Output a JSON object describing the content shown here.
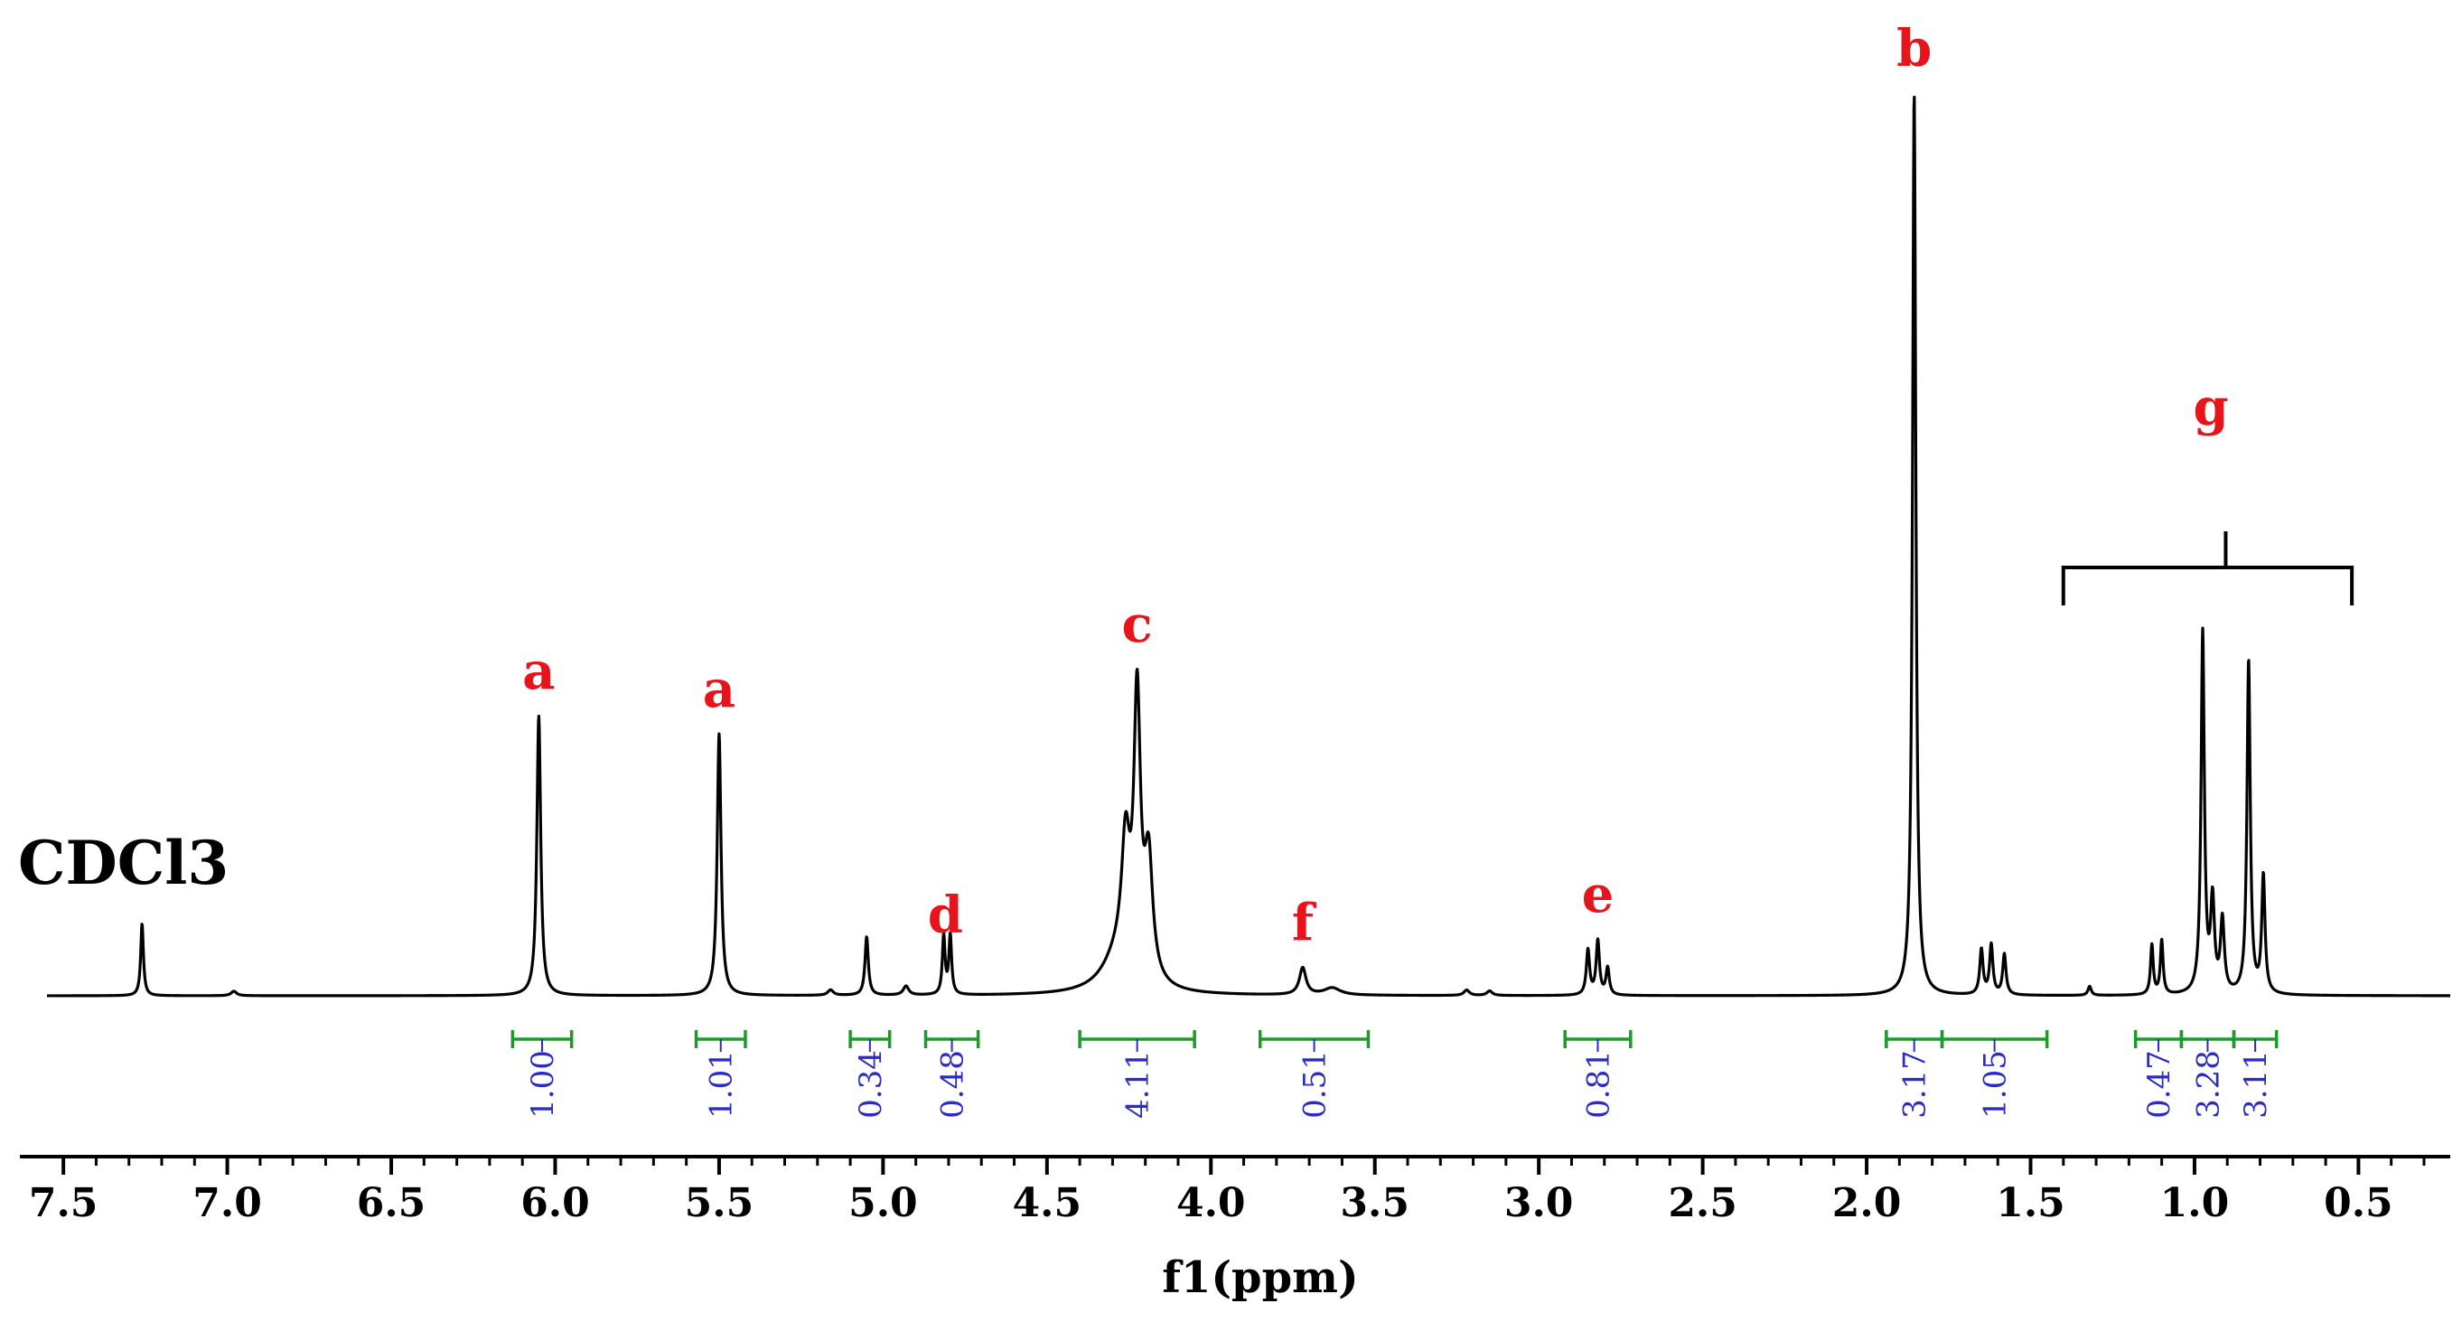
{
  "chart_data": {
    "type": "line",
    "title": "",
    "xlabel": "f1(ppm)",
    "ylabel": "",
    "x_axis": {
      "reversed": true,
      "xlim": [
        7.55,
        0.22
      ],
      "ticks": [
        7.5,
        7.0,
        6.5,
        6.0,
        5.5,
        5.0,
        4.5,
        4.0,
        3.5,
        3.0,
        2.5,
        2.0,
        1.5,
        1.0,
        0.5
      ],
      "tick_labels": [
        "7.5",
        "7.0",
        "6.5",
        "6.0",
        "5.5",
        "5.0",
        "4.5",
        "4.0",
        "3.5",
        "3.0",
        "2.5",
        "2.0",
        "1.5",
        "1.0",
        "0.5"
      ]
    },
    "y_range": [
      0,
      1
    ],
    "peaks": [
      {
        "ppm": 7.26,
        "intensity": 0.08,
        "width": 0.005
      },
      {
        "ppm": 6.98,
        "intensity": 0.005,
        "width": 0.01
      },
      {
        "ppm": 6.05,
        "intensity": 0.31,
        "width": 0.007
      },
      {
        "ppm": 5.5,
        "intensity": 0.29,
        "width": 0.007
      },
      {
        "ppm": 5.16,
        "intensity": 0.006,
        "width": 0.01
      },
      {
        "ppm": 5.05,
        "intensity": 0.065,
        "width": 0.006
      },
      {
        "ppm": 4.93,
        "intensity": 0.01,
        "width": 0.01
      },
      {
        "ppm": 4.815,
        "intensity": 0.065,
        "width": 0.005
      },
      {
        "ppm": 4.795,
        "intensity": 0.065,
        "width": 0.005
      },
      {
        "ppm": 4.26,
        "intensity": 0.13,
        "width": 0.015
      },
      {
        "ppm": 4.225,
        "intensity": 0.3,
        "width": 0.012
      },
      {
        "ppm": 4.19,
        "intensity": 0.13,
        "width": 0.015
      },
      {
        "ppm": 4.28,
        "intensity": 0.04,
        "width": 0.06
      },
      {
        "ppm": 3.72,
        "intensity": 0.03,
        "width": 0.012
      },
      {
        "ppm": 3.63,
        "intensity": 0.008,
        "width": 0.03
      },
      {
        "ppm": 3.22,
        "intensity": 0.006,
        "width": 0.01
      },
      {
        "ppm": 3.15,
        "intensity": 0.005,
        "width": 0.01
      },
      {
        "ppm": 2.85,
        "intensity": 0.05,
        "width": 0.006
      },
      {
        "ppm": 2.82,
        "intensity": 0.06,
        "width": 0.006
      },
      {
        "ppm": 2.79,
        "intensity": 0.03,
        "width": 0.006
      },
      {
        "ppm": 1.855,
        "intensity": 1.0,
        "width": 0.006
      },
      {
        "ppm": 1.65,
        "intensity": 0.05,
        "width": 0.006
      },
      {
        "ppm": 1.62,
        "intensity": 0.055,
        "width": 0.006
      },
      {
        "ppm": 1.58,
        "intensity": 0.045,
        "width": 0.006
      },
      {
        "ppm": 1.32,
        "intensity": 0.01,
        "width": 0.006
      },
      {
        "ppm": 1.13,
        "intensity": 0.055,
        "width": 0.005
      },
      {
        "ppm": 1.1,
        "intensity": 0.06,
        "width": 0.005
      },
      {
        "ppm": 0.975,
        "intensity": 0.4,
        "width": 0.006
      },
      {
        "ppm": 0.945,
        "intensity": 0.1,
        "width": 0.007
      },
      {
        "ppm": 0.915,
        "intensity": 0.08,
        "width": 0.007
      },
      {
        "ppm": 0.835,
        "intensity": 0.37,
        "width": 0.006
      },
      {
        "ppm": 0.79,
        "intensity": 0.13,
        "width": 0.006
      }
    ],
    "peak_labels": [
      {
        "text": "a",
        "ppm": 6.05
      },
      {
        "text": "a",
        "ppm": 5.5
      },
      {
        "text": "d",
        "ppm": 4.81
      },
      {
        "text": "c",
        "ppm": 4.225
      },
      {
        "text": "f",
        "ppm": 3.72
      },
      {
        "text": "e",
        "ppm": 2.82
      },
      {
        "text": "b",
        "ppm": 1.855
      },
      {
        "text": "g",
        "ppm": 0.95
      }
    ],
    "solvent_label": {
      "text": "CDCl3",
      "ppm": 7.26
    },
    "group_bracket": {
      "label": "g",
      "from_ppm": 1.4,
      "to_ppm": 0.52
    },
    "integrals": [
      {
        "value": "1.00",
        "from": 6.13,
        "to": 5.95
      },
      {
        "value": "1.01",
        "from": 5.57,
        "to": 5.42
      },
      {
        "value": "0.34",
        "from": 5.1,
        "to": 4.98
      },
      {
        "value": "0.48",
        "from": 4.87,
        "to": 4.71
      },
      {
        "value": "4.11",
        "from": 4.4,
        "to": 4.05
      },
      {
        "value": "0.51",
        "from": 3.85,
        "to": 3.52
      },
      {
        "value": "0.81",
        "from": 2.92,
        "to": 2.72
      },
      {
        "value": "3.17",
        "from": 1.94,
        "to": 1.77
      },
      {
        "value": "1.05",
        "from": 1.77,
        "to": 1.45
      },
      {
        "value": "0.47",
        "from": 1.18,
        "to": 1.04
      },
      {
        "value": "3.28",
        "from": 1.04,
        "to": 0.88
      },
      {
        "value": "3.11",
        "from": 0.88,
        "to": 0.75
      }
    ],
    "colors": {
      "spectrum": "#000000",
      "peak_labels": "#e8141c",
      "integral_bars": "#1c9a2a",
      "integral_values": "#2b2bc8"
    }
  }
}
